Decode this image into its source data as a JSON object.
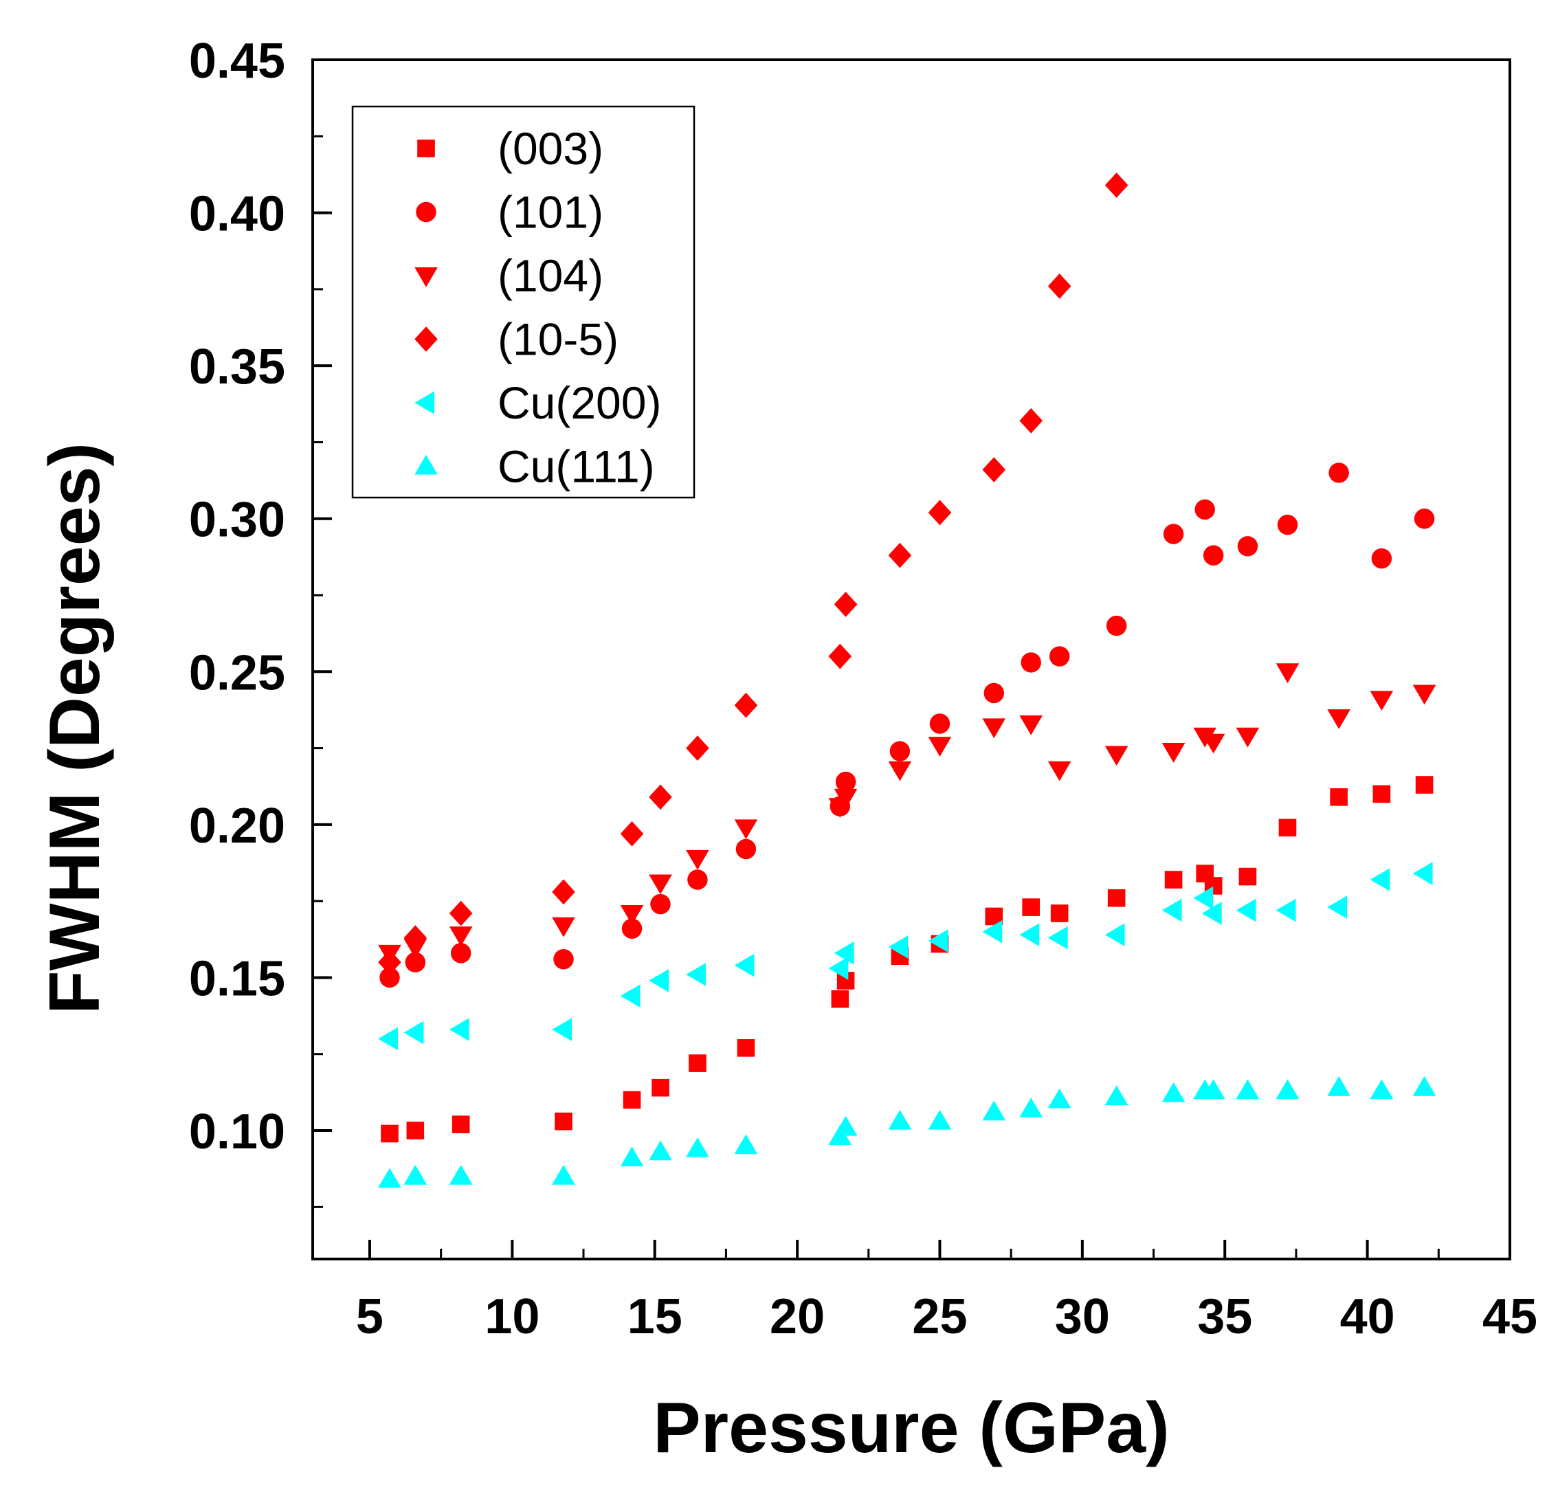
{
  "chart_data": {
    "type": "scatter",
    "title": "",
    "xlabel": "Pressure (GPa)",
    "ylabel": "FWHM (Degrees)",
    "xlim": [
      3,
      45
    ],
    "ylim": [
      0.058,
      0.45
    ],
    "xticks": [
      5,
      10,
      15,
      20,
      25,
      30,
      35,
      40,
      45
    ],
    "xtick_labels": [
      "5",
      "10",
      "15",
      "20",
      "25",
      "30",
      "35",
      "40",
      "45"
    ],
    "yticks": [
      0.1,
      0.15,
      0.2,
      0.25,
      0.3,
      0.35,
      0.4,
      0.45
    ],
    "ytick_labels": [
      "0.10",
      "0.15",
      "0.20",
      "0.25",
      "0.30",
      "0.35",
      "0.40",
      "0.45"
    ],
    "grid": false,
    "legend_position": "top-left",
    "series": [
      {
        "name": "(003)",
        "marker": "square",
        "color": "#ff0000",
        "x": [
          5.7,
          6.6,
          8.2,
          11.8,
          14.2,
          15.2,
          16.5,
          18.2,
          21.5,
          21.7,
          23.6,
          25.0,
          26.9,
          28.2,
          29.2,
          31.2,
          33.2,
          34.3,
          34.6,
          35.8,
          37.2,
          39.0,
          40.5,
          42.0
        ],
        "y": [
          0.099,
          0.1,
          0.102,
          0.103,
          0.11,
          0.114,
          0.122,
          0.127,
          0.143,
          0.149,
          0.157,
          0.161,
          0.17,
          0.173,
          0.171,
          0.176,
          0.182,
          0.184,
          0.18,
          0.183,
          0.199,
          0.209,
          0.21,
          0.213
        ]
      },
      {
        "name": "(101)",
        "marker": "circle",
        "color": "#ff0000",
        "x": [
          5.7,
          6.6,
          8.2,
          11.8,
          14.2,
          15.2,
          16.5,
          18.2,
          21.5,
          21.7,
          23.6,
          25.0,
          26.9,
          28.2,
          29.2,
          31.2,
          33.2,
          34.3,
          34.6,
          35.8,
          37.2,
          39.0,
          40.5,
          42.0
        ],
        "y": [
          0.15,
          0.155,
          0.158,
          0.156,
          0.166,
          0.174,
          0.182,
          0.192,
          0.206,
          0.214,
          0.224,
          0.233,
          0.243,
          0.253,
          0.255,
          0.265,
          0.295,
          0.303,
          0.288,
          0.291,
          0.298,
          0.315,
          0.287,
          0.3
        ]
      },
      {
        "name": "(104)",
        "marker": "triangle-down",
        "color": "#ff0000",
        "x": [
          5.7,
          6.6,
          8.2,
          11.8,
          14.2,
          15.2,
          16.5,
          18.2,
          21.5,
          21.7,
          23.6,
          25.0,
          26.9,
          28.2,
          29.2,
          31.2,
          33.2,
          34.3,
          34.6,
          35.8,
          37.2,
          39.0,
          40.5,
          42.0
        ],
        "y": [
          0.158,
          0.16,
          0.164,
          0.167,
          0.171,
          0.181,
          0.189,
          0.199,
          0.206,
          0.209,
          0.218,
          0.226,
          0.232,
          0.233,
          0.218,
          0.223,
          0.224,
          0.229,
          0.227,
          0.229,
          0.25,
          0.235,
          0.241,
          0.243
        ]
      },
      {
        "name": "(10-5)",
        "marker": "diamond",
        "color": "#ff0000",
        "x": [
          5.7,
          6.6,
          8.2,
          11.8,
          14.2,
          15.2,
          16.5,
          18.2,
          21.5,
          21.7,
          23.6,
          25.0,
          26.9,
          28.2,
          29.2,
          31.2
        ],
        "y": [
          0.155,
          0.163,
          0.171,
          0.178,
          0.197,
          0.209,
          0.225,
          0.239,
          0.255,
          0.272,
          0.288,
          0.302,
          0.316,
          0.332,
          0.376,
          0.409
        ]
      },
      {
        "name": "Cu(200)",
        "marker": "triangle-left",
        "color": "#00ffff",
        "x": [
          5.7,
          6.6,
          8.2,
          11.8,
          14.2,
          15.2,
          16.5,
          18.2,
          21.5,
          21.7,
          23.6,
          25.0,
          26.9,
          28.2,
          29.2,
          31.2,
          33.2,
          34.3,
          34.6,
          35.8,
          37.2,
          39.0,
          40.5,
          42.0
        ],
        "y": [
          0.13,
          0.132,
          0.133,
          0.133,
          0.144,
          0.149,
          0.151,
          0.154,
          0.153,
          0.158,
          0.16,
          0.162,
          0.165,
          0.164,
          0.163,
          0.164,
          0.172,
          0.176,
          0.171,
          0.172,
          0.172,
          0.173,
          0.182,
          0.184
        ]
      },
      {
        "name": "Cu(111)",
        "marker": "triangle-up",
        "color": "#00ffff",
        "x": [
          5.7,
          6.6,
          8.2,
          11.8,
          14.2,
          15.2,
          16.5,
          18.2,
          21.5,
          21.7,
          23.6,
          25.0,
          26.9,
          28.2,
          29.2,
          31.2,
          33.2,
          34.3,
          34.6,
          35.8,
          37.2,
          39.0,
          40.5,
          42.0
        ],
        "y": [
          0.084,
          0.085,
          0.085,
          0.085,
          0.091,
          0.093,
          0.094,
          0.095,
          0.098,
          0.101,
          0.103,
          0.103,
          0.106,
          0.107,
          0.11,
          0.111,
          0.112,
          0.113,
          0.113,
          0.113,
          0.113,
          0.114,
          0.113,
          0.114
        ]
      }
    ]
  }
}
